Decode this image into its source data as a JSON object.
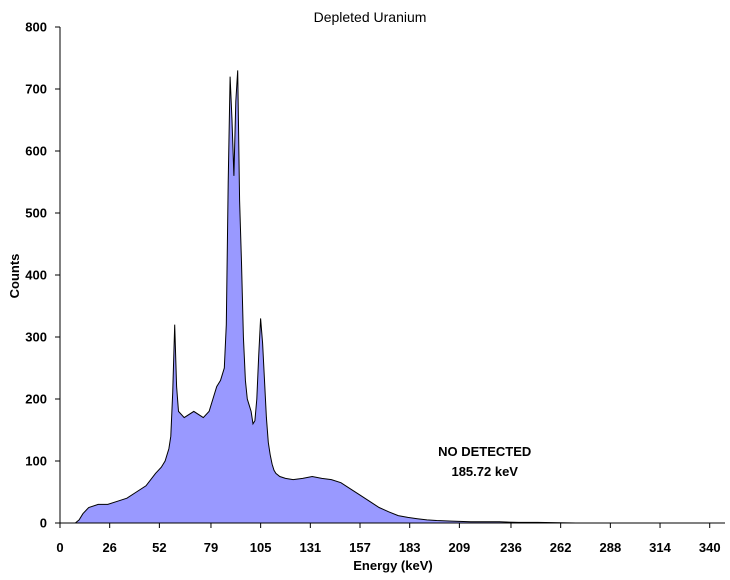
{
  "chart_data": {
    "type": "area",
    "title": "Depleted Uranium",
    "xlabel": "Energy (keV)",
    "ylabel": "Counts",
    "xlim": [
      0,
      348
    ],
    "ylim": [
      0,
      800
    ],
    "x_ticks": [
      "0",
      "26",
      "52",
      "79",
      "105",
      "131",
      "157",
      "183",
      "209",
      "236",
      "262",
      "288",
      "314",
      "340"
    ],
    "y_ticks": [
      "0",
      "100",
      "200",
      "300",
      "400",
      "500",
      "600",
      "700",
      "800"
    ],
    "grid": false,
    "fill_color": "#9999ff",
    "line_color": "#000000",
    "annotations": [
      {
        "line1": "NO DETECTED",
        "line2": "185.72 keV",
        "x": 205,
        "y": 100
      }
    ],
    "series": [
      {
        "x": [
          0,
          8,
          10,
          12,
          15,
          20,
          25,
          30,
          35,
          40,
          45,
          50,
          53,
          55,
          57,
          58,
          59,
          60,
          61,
          62,
          65,
          70,
          75,
          78,
          80,
          82,
          84,
          86,
          87,
          88,
          89,
          90,
          91,
          92,
          93,
          94,
          95,
          96,
          97,
          98,
          99,
          100,
          101,
          102,
          103,
          104,
          105,
          106,
          107,
          108,
          109,
          110,
          111,
          112,
          113,
          115,
          118,
          122,
          127,
          132,
          137,
          142,
          147,
          152,
          157,
          162,
          167,
          172,
          177,
          182,
          187,
          192,
          197,
          205,
          215,
          230,
          240,
          250,
          270,
          300,
          330,
          348
        ],
        "values": [
          0,
          0,
          5,
          15,
          25,
          30,
          30,
          35,
          40,
          50,
          60,
          80,
          90,
          100,
          120,
          140,
          210,
          320,
          220,
          180,
          170,
          180,
          170,
          180,
          200,
          220,
          230,
          250,
          320,
          550,
          720,
          650,
          560,
          680,
          730,
          520,
          420,
          300,
          230,
          200,
          190,
          180,
          160,
          165,
          200,
          270,
          330,
          290,
          230,
          170,
          130,
          110,
          95,
          85,
          80,
          75,
          72,
          70,
          72,
          75,
          72,
          70,
          65,
          55,
          45,
          35,
          25,
          18,
          12,
          9,
          7,
          5,
          4,
          3,
          2,
          2,
          1,
          1,
          0,
          0,
          0,
          0
        ]
      }
    ]
  }
}
